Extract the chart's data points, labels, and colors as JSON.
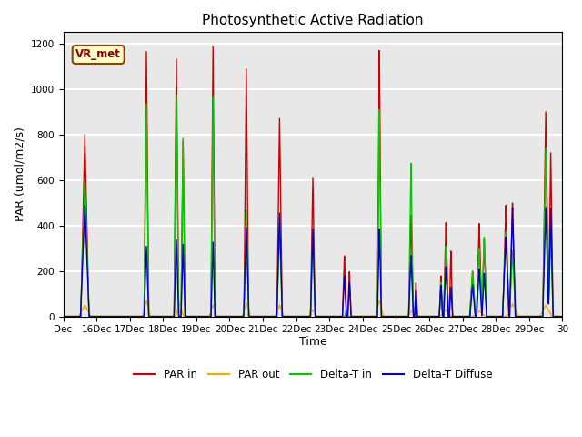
{
  "title": "Photosynthetic Active Radiation",
  "ylabel": "PAR (umol/m2/s)",
  "xlabel": "Time",
  "annotation": "VR_met",
  "ylim": [
    0,
    1250
  ],
  "bg_color": "#e8e8e8",
  "grid_color": "white",
  "series": {
    "PAR_in": {
      "color": "#cc0000",
      "lw": 1.0
    },
    "PAR_out": {
      "color": "#ffa500",
      "lw": 1.0
    },
    "Delta_T_in": {
      "color": "#00cc00",
      "lw": 1.0
    },
    "Delta_T_Diffuse": {
      "color": "#0000cc",
      "lw": 1.0
    }
  },
  "xtick_labels": [
    "Dec",
    "16Dec",
    "17Dec",
    "18Dec",
    "19Dec",
    "20Dec",
    "21Dec",
    "22Dec",
    "23Dec",
    "24Dec",
    "25Dec",
    "26Dec",
    "27Dec",
    "28Dec",
    "29Dec",
    "30"
  ],
  "xtick_positions": [
    0,
    1,
    2,
    3,
    4,
    5,
    6,
    7,
    8,
    9,
    10,
    11,
    12,
    13,
    14,
    15
  ]
}
